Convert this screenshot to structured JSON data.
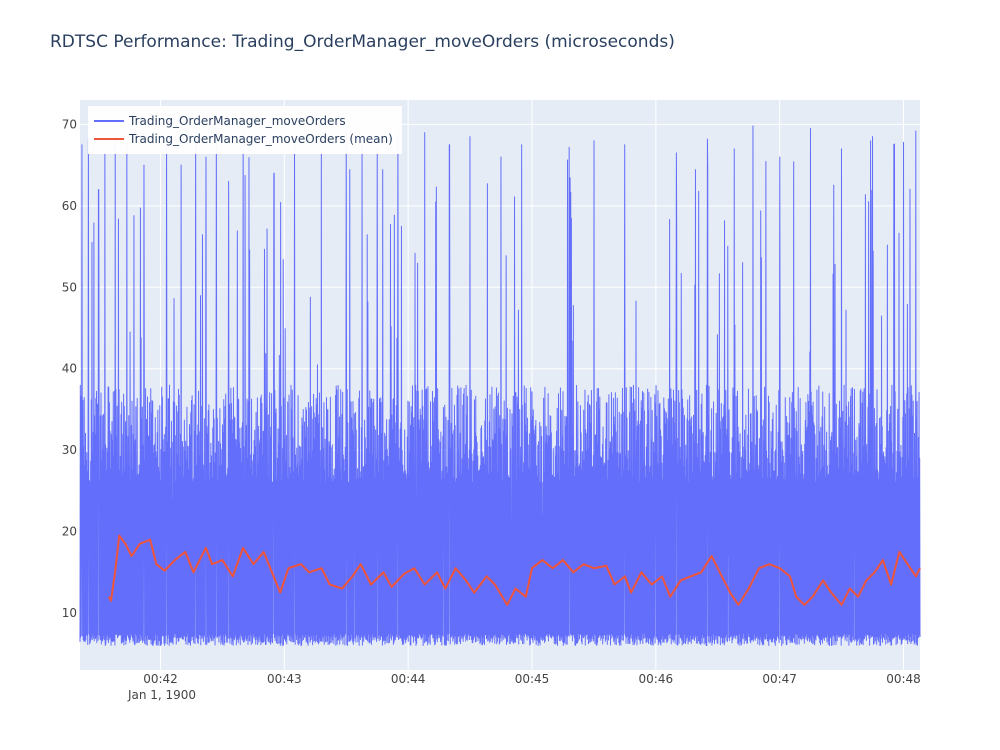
{
  "chart_data": {
    "type": "line",
    "title": "RDTSC Performance: Trading_OrderManager_moveOrders (microseconds)",
    "xlabel": "",
    "ylabel": "",
    "x_axis": {
      "type": "date",
      "date_label": "Jan 1, 1900",
      "range": [
        "1900-01-01 00:41:21",
        "1900-01-01 00:48:08"
      ],
      "ticks": [
        {
          "value": "1900-01-01 00:42:00",
          "label": "00:42"
        },
        {
          "value": "1900-01-01 00:43:00",
          "label": "00:43"
        },
        {
          "value": "1900-01-01 00:44:00",
          "label": "00:44"
        },
        {
          "value": "1900-01-01 00:45:00",
          "label": "00:45"
        },
        {
          "value": "1900-01-01 00:46:00",
          "label": "00:46"
        },
        {
          "value": "1900-01-01 00:47:00",
          "label": "00:47"
        },
        {
          "value": "1900-01-01 00:48:00",
          "label": "00:48"
        }
      ]
    },
    "y_axis": {
      "range": [
        3,
        73
      ],
      "ticks": [
        10,
        20,
        30,
        40,
        50,
        60,
        70
      ]
    },
    "grid": true,
    "legend_position": "top-left",
    "series": [
      {
        "name": "Trading_OrderManager_moveOrders",
        "color": "#636efa",
        "summary": {
          "min": 6,
          "max": 70,
          "typical_upper": 38,
          "start": "1900-01-01 00:41:21",
          "end": "1900-01-01 00:48:08"
        },
        "spikes": [
          {
            "x": "1900-01-01 00:41:22",
            "y": 67.5
          },
          {
            "x": "1900-01-01 00:41:25",
            "y": 68.2
          },
          {
            "x": "1900-01-01 00:41:30",
            "y": 62
          },
          {
            "x": "1900-01-01 00:41:33",
            "y": 66.8
          },
          {
            "x": "1900-01-01 00:41:38",
            "y": 68
          },
          {
            "x": "1900-01-01 00:41:45",
            "y": 63
          },
          {
            "x": "1900-01-01 00:41:52",
            "y": 65
          },
          {
            "x": "1900-01-01 00:42:03",
            "y": 68
          },
          {
            "x": "1900-01-01 00:42:10",
            "y": 65
          },
          {
            "x": "1900-01-01 00:42:17",
            "y": 69
          },
          {
            "x": "1900-01-01 00:42:22",
            "y": 66
          },
          {
            "x": "1900-01-01 00:42:27",
            "y": 68.5
          },
          {
            "x": "1900-01-01 00:42:33",
            "y": 63
          },
          {
            "x": "1900-01-01 00:42:40",
            "y": 69
          },
          {
            "x": "1900-01-01 00:42:55",
            "y": 64
          },
          {
            "x": "1900-01-01 00:43:05",
            "y": 67.5
          },
          {
            "x": "1900-01-01 00:43:18",
            "y": 66.5
          },
          {
            "x": "1900-01-01 00:43:30",
            "y": 69.5
          },
          {
            "x": "1900-01-01 00:43:45",
            "y": 67
          },
          {
            "x": "1900-01-01 00:43:55",
            "y": 69.2
          },
          {
            "x": "1900-01-01 00:44:08",
            "y": 69
          },
          {
            "x": "1900-01-01 00:44:20",
            "y": 67.5
          },
          {
            "x": "1900-01-01 00:44:30",
            "y": 68.5
          },
          {
            "x": "1900-01-01 00:44:45",
            "y": 66
          },
          {
            "x": "1900-01-01 00:44:55",
            "y": 67.5
          },
          {
            "x": "1900-01-01 00:45:05",
            "y": 66
          },
          {
            "x": "1900-01-01 00:45:18",
            "y": 67.2
          },
          {
            "x": "1900-01-01 00:45:30",
            "y": 68
          },
          {
            "x": "1900-01-01 00:45:45",
            "y": 67.5
          },
          {
            "x": "1900-01-01 00:46:00",
            "y": 69.8
          },
          {
            "x": "1900-01-01 00:46:10",
            "y": 66.5
          },
          {
            "x": "1900-01-01 00:46:25",
            "y": 68.2
          },
          {
            "x": "1900-01-01 00:46:38",
            "y": 67
          },
          {
            "x": "1900-01-01 00:46:47",
            "y": 69.8
          },
          {
            "x": "1900-01-01 00:47:00",
            "y": 66
          },
          {
            "x": "1900-01-01 00:47:15",
            "y": 69.5
          },
          {
            "x": "1900-01-01 00:47:30",
            "y": 67
          },
          {
            "x": "1900-01-01 00:47:45",
            "y": 68.5
          },
          {
            "x": "1900-01-01 00:48:00",
            "y": 67.8
          },
          {
            "x": "1900-01-01 00:48:06",
            "y": 69.2
          }
        ],
        "dips": [
          {
            "x": "1900-01-01 00:41:45",
            "y": 28
          },
          {
            "x": "1900-01-01 00:42:06",
            "y": 24
          },
          {
            "x": "1900-01-01 00:43:34",
            "y": 18
          },
          {
            "x": "1900-01-01 00:44:04",
            "y": 18
          },
          {
            "x": "1900-01-01 00:44:17",
            "y": 24
          },
          {
            "x": "1900-01-01 00:44:50",
            "y": 16
          },
          {
            "x": "1900-01-01 00:45:05",
            "y": 22
          },
          {
            "x": "1900-01-01 00:46:00",
            "y": 22
          },
          {
            "x": "1900-01-01 00:46:35",
            "y": 17
          },
          {
            "x": "1900-01-01 00:47:36",
            "y": 22
          }
        ]
      },
      {
        "name": "Trading_OrderManager_moveOrders (mean)",
        "color": "#ef553b",
        "points": [
          {
            "x": "1900-01-01 00:41:35",
            "y": 12
          },
          {
            "x": "1900-01-01 00:41:36",
            "y": 11.5
          },
          {
            "x": "1900-01-01 00:41:38",
            "y": 15
          },
          {
            "x": "1900-01-01 00:41:40",
            "y": 19.5
          },
          {
            "x": "1900-01-01 00:41:43",
            "y": 18.5
          },
          {
            "x": "1900-01-01 00:41:46",
            "y": 17
          },
          {
            "x": "1900-01-01 00:41:50",
            "y": 18.5
          },
          {
            "x": "1900-01-01 00:41:55",
            "y": 19
          },
          {
            "x": "1900-01-01 00:41:58",
            "y": 16
          },
          {
            "x": "1900-01-01 00:42:02",
            "y": 15.2
          },
          {
            "x": "1900-01-01 00:42:07",
            "y": 16.5
          },
          {
            "x": "1900-01-01 00:42:12",
            "y": 17.5
          },
          {
            "x": "1900-01-01 00:42:16",
            "y": 15
          },
          {
            "x": "1900-01-01 00:42:22",
            "y": 18
          },
          {
            "x": "1900-01-01 00:42:25",
            "y": 16
          },
          {
            "x": "1900-01-01 00:42:30",
            "y": 16.5
          },
          {
            "x": "1900-01-01 00:42:35",
            "y": 14.5
          },
          {
            "x": "1900-01-01 00:42:40",
            "y": 18
          },
          {
            "x": "1900-01-01 00:42:45",
            "y": 16
          },
          {
            "x": "1900-01-01 00:42:50",
            "y": 17.5
          },
          {
            "x": "1900-01-01 00:42:54",
            "y": 15
          },
          {
            "x": "1900-01-01 00:42:58",
            "y": 12.5
          },
          {
            "x": "1900-01-01 00:43:02",
            "y": 15.5
          },
          {
            "x": "1900-01-01 00:43:08",
            "y": 16
          },
          {
            "x": "1900-01-01 00:43:12",
            "y": 15
          },
          {
            "x": "1900-01-01 00:43:18",
            "y": 15.5
          },
          {
            "x": "1900-01-01 00:43:22",
            "y": 13.5
          },
          {
            "x": "1900-01-01 00:43:28",
            "y": 13
          },
          {
            "x": "1900-01-01 00:43:33",
            "y": 14.5
          },
          {
            "x": "1900-01-01 00:43:37",
            "y": 16
          },
          {
            "x": "1900-01-01 00:43:42",
            "y": 13.5
          },
          {
            "x": "1900-01-01 00:43:48",
            "y": 15
          },
          {
            "x": "1900-01-01 00:43:52",
            "y": 13.2
          },
          {
            "x": "1900-01-01 00:43:58",
            "y": 14.8
          },
          {
            "x": "1900-01-01 00:44:03",
            "y": 15.5
          },
          {
            "x": "1900-01-01 00:44:08",
            "y": 13.5
          },
          {
            "x": "1900-01-01 00:44:14",
            "y": 15
          },
          {
            "x": "1900-01-01 00:44:18",
            "y": 13
          },
          {
            "x": "1900-01-01 00:44:23",
            "y": 15.5
          },
          {
            "x": "1900-01-01 00:44:28",
            "y": 14
          },
          {
            "x": "1900-01-01 00:44:32",
            "y": 12.5
          },
          {
            "x": "1900-01-01 00:44:38",
            "y": 14.5
          },
          {
            "x": "1900-01-01 00:44:42",
            "y": 13.5
          },
          {
            "x": "1900-01-01 00:44:48",
            "y": 11
          },
          {
            "x": "1900-01-01 00:44:52",
            "y": 13
          },
          {
            "x": "1900-01-01 00:44:57",
            "y": 12
          },
          {
            "x": "1900-01-01 00:45:00",
            "y": 15.5
          },
          {
            "x": "1900-01-01 00:45:05",
            "y": 16.5
          },
          {
            "x": "1900-01-01 00:45:10",
            "y": 15.5
          },
          {
            "x": "1900-01-01 00:45:15",
            "y": 16.5
          },
          {
            "x": "1900-01-01 00:45:20",
            "y": 15
          },
          {
            "x": "1900-01-01 00:45:25",
            "y": 16
          },
          {
            "x": "1900-01-01 00:45:30",
            "y": 15.5
          },
          {
            "x": "1900-01-01 00:45:36",
            "y": 15.8
          },
          {
            "x": "1900-01-01 00:45:40",
            "y": 13.5
          },
          {
            "x": "1900-01-01 00:45:45",
            "y": 14.5
          },
          {
            "x": "1900-01-01 00:45:48",
            "y": 12.5
          },
          {
            "x": "1900-01-01 00:45:53",
            "y": 15
          },
          {
            "x": "1900-01-01 00:45:58",
            "y": 13.5
          },
          {
            "x": "1900-01-01 00:46:03",
            "y": 14.5
          },
          {
            "x": "1900-01-01 00:46:07",
            "y": 12
          },
          {
            "x": "1900-01-01 00:46:12",
            "y": 14
          },
          {
            "x": "1900-01-01 00:46:17",
            "y": 14.5
          },
          {
            "x": "1900-01-01 00:46:22",
            "y": 15
          },
          {
            "x": "1900-01-01 00:46:27",
            "y": 17
          },
          {
            "x": "1900-01-01 00:46:31",
            "y": 15
          },
          {
            "x": "1900-01-01 00:46:36",
            "y": 12.5
          },
          {
            "x": "1900-01-01 00:46:40",
            "y": 11
          },
          {
            "x": "1900-01-01 00:46:45",
            "y": 13
          },
          {
            "x": "1900-01-01 00:46:50",
            "y": 15.5
          },
          {
            "x": "1900-01-01 00:46:55",
            "y": 16
          },
          {
            "x": "1900-01-01 00:47:00",
            "y": 15.5
          },
          {
            "x": "1900-01-01 00:47:05",
            "y": 14.5
          },
          {
            "x": "1900-01-01 00:47:08",
            "y": 12
          },
          {
            "x": "1900-01-01 00:47:12",
            "y": 11
          },
          {
            "x": "1900-01-01 00:47:16",
            "y": 12
          },
          {
            "x": "1900-01-01 00:47:21",
            "y": 14
          },
          {
            "x": "1900-01-01 00:47:25",
            "y": 12.5
          },
          {
            "x": "1900-01-01 00:47:30",
            "y": 11
          },
          {
            "x": "1900-01-01 00:47:34",
            "y": 13
          },
          {
            "x": "1900-01-01 00:47:38",
            "y": 12
          },
          {
            "x": "1900-01-01 00:47:42",
            "y": 14
          },
          {
            "x": "1900-01-01 00:47:46",
            "y": 15
          },
          {
            "x": "1900-01-01 00:47:50",
            "y": 16.5
          },
          {
            "x": "1900-01-01 00:47:54",
            "y": 13.5
          },
          {
            "x": "1900-01-01 00:47:58",
            "y": 17.5
          },
          {
            "x": "1900-01-01 00:48:02",
            "y": 16
          },
          {
            "x": "1900-01-01 00:48:06",
            "y": 14.5
          },
          {
            "x": "1900-01-01 00:48:08",
            "y": 15.5
          }
        ]
      }
    ]
  },
  "colors": {
    "plot_background": "#e5ecf6",
    "gridline": "#ffffff",
    "title_text": "#2a3f5f",
    "tick_text": "#444444"
  }
}
